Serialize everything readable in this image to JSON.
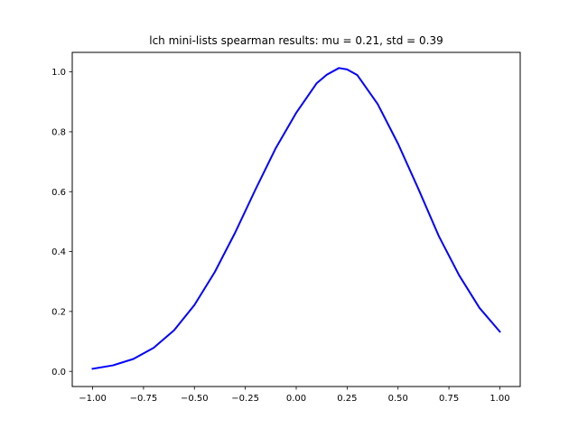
{
  "chart_data": {
    "type": "line",
    "title": "lch mini-lists spearman results: mu = 0.21,  std = 0.39",
    "xlabel": "",
    "ylabel": "",
    "xlim": [
      -1.1,
      1.1
    ],
    "ylim": [
      -0.0507,
      1.0652
    ],
    "grid": false,
    "x_ticks": [
      -1.0,
      -0.75,
      -0.5,
      -0.25,
      0.0,
      0.25,
      0.5,
      0.75,
      1.0
    ],
    "x_tick_labels": [
      "−1.00",
      "−0.75",
      "−0.50",
      "−0.25",
      "0.00",
      "0.25",
      "0.50",
      "0.75",
      "1.00"
    ],
    "y_ticks": [
      0.0,
      0.2,
      0.4,
      0.6,
      0.8,
      1.0
    ],
    "y_tick_labels": [
      "0.0",
      "0.2",
      "0.4",
      "0.6",
      "0.8",
      "1.0"
    ],
    "series": [
      {
        "color": "#0000ff",
        "x": [
          -1.0,
          -0.9,
          -0.8,
          -0.7,
          -0.6,
          -0.5,
          -0.4,
          -0.3,
          -0.2,
          -0.1,
          0.0,
          0.1,
          0.15,
          0.21,
          0.25,
          0.3,
          0.4,
          0.5,
          0.6,
          0.7,
          0.8,
          0.9,
          1.0
        ],
        "y": [
          0.0087,
          0.02,
          0.0413,
          0.0787,
          0.1372,
          0.2214,
          0.3315,
          0.4632,
          0.6075,
          0.7459,
          0.8634,
          0.9618,
          0.9907,
          1.013,
          1.0083,
          0.9893,
          0.8928,
          0.7602,
          0.6092,
          0.4521,
          0.3209,
          0.2119,
          0.1326
        ]
      }
    ]
  }
}
